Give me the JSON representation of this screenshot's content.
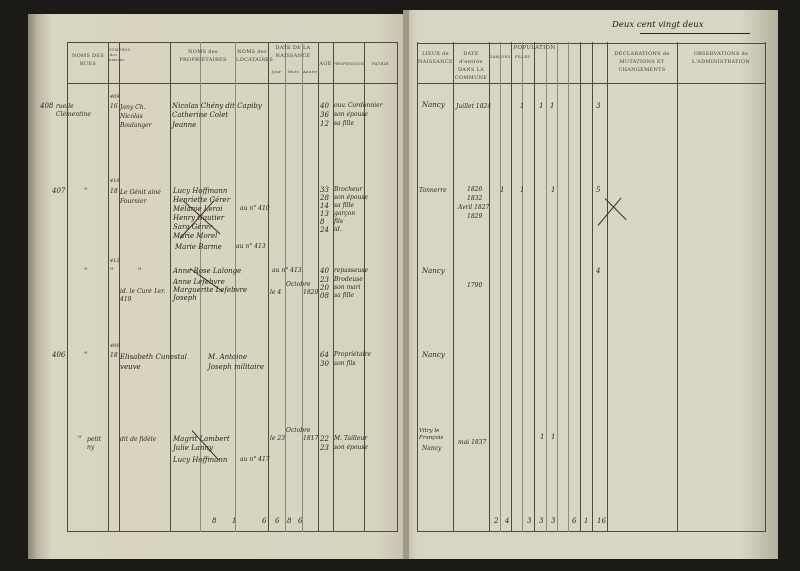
{
  "page_number_text": "Deux cent vingt deux",
  "headers": {
    "rues": "NOMS DES RUES",
    "maisons": "NUMÉROS des maisons",
    "proprietaires": "NOMS des PROPRIÉTAIRES",
    "locataires": "NOMS des LOCATAIRES",
    "date_naissance": "DATE DE LA NAISSANCE",
    "jour": "Jour",
    "mois": "Mois",
    "annee": "Année",
    "age": "AGE",
    "profession": "PROFESSION",
    "patrie": "PATRIE",
    "lieux": "LIEUX de NAISSANCE",
    "date_entree": "DATE d'entrée DANS LA COMMUNE",
    "population": "POPULATION",
    "garcons": "GARÇONS",
    "filles": "FILLES",
    "declarations": "DÉCLARATIONS de MUTATIONS ET CHANGEMENTS",
    "observations": "OBSERVATIONS de L'ADMINISTRATION"
  },
  "entries": [
    {
      "rue": "ruelle Clémentine",
      "maison": "16",
      "maison_note": "409",
      "proprietaire": "Jany Ch. Nicolas Boulanger",
      "locataires": [
        "Nicolas Chény dit Capiby",
        "Catherine Colet",
        "Jeanne"
      ],
      "ages": [
        "40",
        "36",
        "12"
      ],
      "professions": [
        "ouv. Cordonnier",
        "son épouse",
        "sa fille"
      ],
      "lieu": "Nancy",
      "date_entree": "Juillet 1824",
      "pop": [
        "1",
        "1",
        "1",
        "3"
      ]
    },
    {
      "rue": "\"",
      "maison": "18",
      "maison_note": "410",
      "proprietaire": "Le Génit ainé Fournier",
      "locataires": [
        "Lucy Hoffmann",
        "Henriette Gérer",
        "Mélanie Leroi",
        "Henry Gautier",
        "Sara Gérer",
        "Marie Morel",
        "Marie Barme"
      ],
      "note": "au n° 410",
      "note2": "au n° 413",
      "ages": [
        "33",
        "28",
        "14",
        "13",
        "8",
        "24"
      ],
      "professions": [
        "Brocheur",
        "son épouse",
        "sa fille",
        "garçon",
        "fils",
        "id."
      ],
      "lieu": "Tonnerre",
      "dates": [
        "1826",
        "1832",
        "Avril 1827",
        "1829"
      ],
      "pop": [
        "1",
        "1",
        "1",
        "5"
      ]
    },
    {
      "rue": "\"",
      "maison": "\"",
      "maison_note": "412",
      "proprietaire": "\"",
      "proprietaire2": "id. le Curé 1er. 419",
      "locataires": [
        "Anne Rose Lalonge",
        "Anne Lefebvre",
        "Marguerite Lefebvre",
        "Joseph"
      ],
      "note": "au n° 413.",
      "birth": [
        "le 4",
        "Octobre",
        "1820"
      ],
      "ages": [
        "40",
        "23",
        "20",
        "08"
      ],
      "professions": [
        "repasseuse",
        "Brodeuse",
        "son mari",
        "sa fille"
      ],
      "lieu": "Nancy",
      "date_entree": "1790",
      "pop": [
        "4"
      ]
    },
    {
      "rue": "\"",
      "maison": "18",
      "maison_note": "400",
      "proprietaire": "Elisabeth Cunestal veuve",
      "locataires": [
        "M. Antoine Joseph militaire"
      ],
      "ages": [
        "64",
        "30"
      ],
      "professions": [
        "Propriétaire",
        "son fils"
      ],
      "lieu": "Nancy"
    },
    {
      "rue": "\"",
      "maison": "petit ny",
      "proprietaire": "dit de fidèle",
      "locataires": [
        "Magrit Lambert",
        "Julie Lanny",
        "Lucy Hoffmann"
      ],
      "note": "au n° 417",
      "birth": [
        "le 23",
        "Octobre",
        "1817"
      ],
      "ages": [
        "22",
        "23"
      ],
      "professions": [
        "M. Tailleur",
        "son épouse"
      ],
      "lieu": "Vitry le François",
      "lieu2": "Nancy",
      "date_entree": "mai 1837",
      "pop": [
        "1",
        "1"
      ]
    }
  ],
  "totals": {
    "left": [
      "8",
      "1",
      "6",
      "6",
      "8",
      "6"
    ],
    "right": [
      "2",
      "4",
      "3",
      "3",
      "3",
      "6",
      "1",
      "16"
    ]
  }
}
